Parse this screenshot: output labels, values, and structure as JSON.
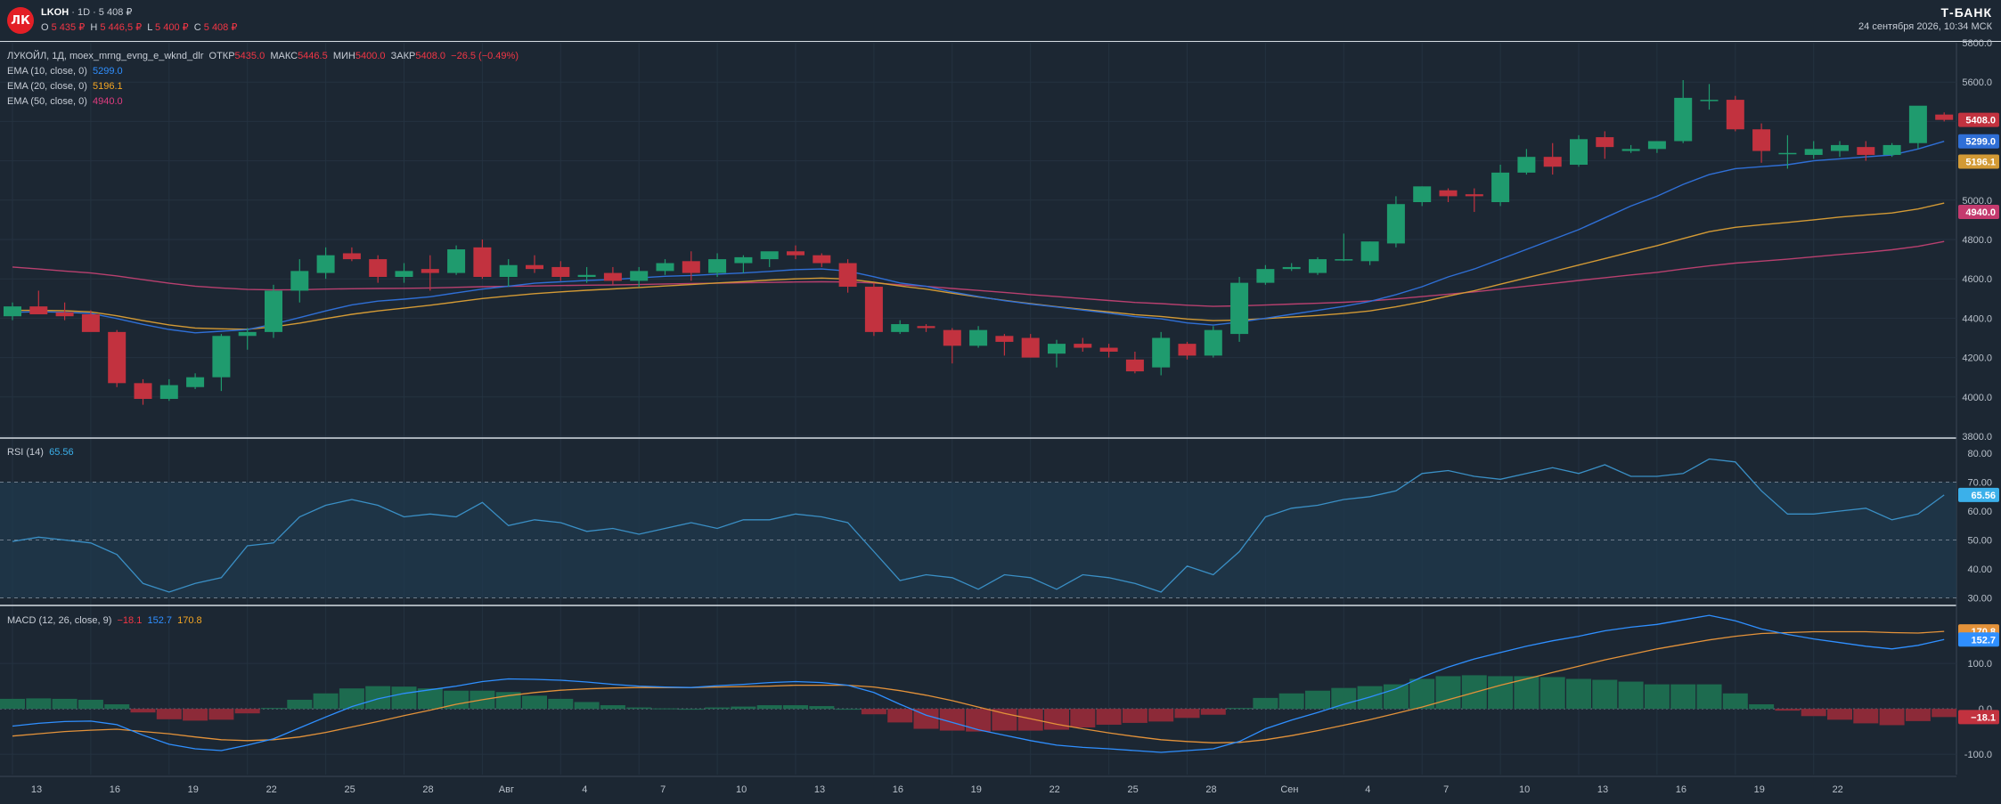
{
  "header": {
    "logo_text": "ЛК",
    "ticker": "LKOH",
    "timeframe": "· 1D ·",
    "last_price": "5 408 ₽",
    "ohlc": [
      {
        "label": "O",
        "value": "5 435 ₽"
      },
      {
        "label": "H",
        "value": "5 446,5 ₽"
      },
      {
        "label": "L",
        "value": "5 400 ₽"
      },
      {
        "label": "C",
        "value": "5 408 ₽"
      }
    ],
    "brand": "Т-БАНК",
    "datetime": "24 сентября 2026, 10:34 МСК"
  },
  "price_legend": {
    "title": "ЛУКОЙЛ, 1Д, moex_mrng_evng_e_wknd_dlr",
    "open_label": "ОТКР",
    "open": "5435.0",
    "high_label": "МАКС",
    "high": "5446.5",
    "low_label": "МИН",
    "low": "5400.0",
    "close_label": "ЗАКР",
    "close": "5408.0",
    "change": "−26.5 (−0.49%)",
    "ema10_label": "EMA (10, close, 0)",
    "ema10": "5299.0",
    "ema20_label": "EMA (20, close, 0)",
    "ema20": "5196.1",
    "ema50_label": "EMA (50, close, 0)",
    "ema50": "4940.0"
  },
  "rsi_legend": {
    "label": "RSI (14)",
    "value": "65.56"
  },
  "macd_legend": {
    "label": "MACD (12, 26, close, 9)",
    "hist": "−18.1",
    "macd": "152.7",
    "signal": "170.8"
  },
  "colors": {
    "up": "#1f9b6e",
    "down": "#c2323f",
    "ema10": "#2f6fd6",
    "ema20": "#d39a35",
    "ema50": "#b8406f",
    "rsi": "#3a8fc5",
    "macd": "#2f8fff",
    "signal": "#e3923a",
    "hist_up": "#1d6b4f",
    "hist_down": "#8c2a38"
  },
  "chart_data": [
    {
      "type": "candlestick",
      "x_tick_labels": [
        "13",
        "16",
        "19",
        "22",
        "25",
        "28",
        "Авг",
        "4",
        "7",
        "10",
        "13",
        "16",
        "19",
        "22",
        "25",
        "28",
        "Сен",
        "4",
        "7",
        "10",
        "13",
        "16",
        "19",
        "22"
      ],
      "y_ticks": [
        3800,
        4000,
        4200,
        4400,
        4600,
        4800,
        5000,
        5200,
        5400,
        5600,
        5800
      ],
      "ylim": [
        3800,
        5800
      ],
      "candles": [
        [
          4410,
          4480,
          4390,
          4460
        ],
        [
          4460,
          4540,
          4430,
          4420
        ],
        [
          4430,
          4480,
          4390,
          4410
        ],
        [
          4420,
          4440,
          4340,
          4330
        ],
        [
          4330,
          4340,
          4050,
          4070
        ],
        [
          4070,
          4090,
          3960,
          3990
        ],
        [
          3990,
          4090,
          3980,
          4060
        ],
        [
          4050,
          4120,
          4040,
          4100
        ],
        [
          4100,
          4320,
          4030,
          4310
        ],
        [
          4310,
          4350,
          4240,
          4330
        ],
        [
          4330,
          4570,
          4300,
          4540
        ],
        [
          4540,
          4700,
          4480,
          4640
        ],
        [
          4630,
          4760,
          4600,
          4720
        ],
        [
          4730,
          4760,
          4690,
          4700
        ],
        [
          4700,
          4720,
          4580,
          4610
        ],
        [
          4610,
          4680,
          4580,
          4640
        ],
        [
          4650,
          4720,
          4540,
          4630
        ],
        [
          4630,
          4770,
          4620,
          4750
        ],
        [
          4760,
          4800,
          4600,
          4610
        ],
        [
          4610,
          4700,
          4560,
          4670
        ],
        [
          4670,
          4720,
          4630,
          4650
        ],
        [
          4660,
          4690,
          4590,
          4610
        ],
        [
          4610,
          4660,
          4580,
          4620
        ],
        [
          4630,
          4660,
          4570,
          4590
        ],
        [
          4590,
          4660,
          4560,
          4640
        ],
        [
          4640,
          4700,
          4620,
          4680
        ],
        [
          4690,
          4740,
          4590,
          4630
        ],
        [
          4630,
          4730,
          4610,
          4700
        ],
        [
          4680,
          4720,
          4630,
          4710
        ],
        [
          4700,
          4730,
          4660,
          4740
        ],
        [
          4740,
          4770,
          4700,
          4720
        ],
        [
          4720,
          4730,
          4660,
          4680
        ],
        [
          4680,
          4700,
          4530,
          4560
        ],
        [
          4560,
          4580,
          4310,
          4330
        ],
        [
          4330,
          4390,
          4320,
          4370
        ],
        [
          4360,
          4370,
          4330,
          4350
        ],
        [
          4340,
          4350,
          4170,
          4260
        ],
        [
          4260,
          4360,
          4250,
          4340
        ],
        [
          4310,
          4320,
          4210,
          4280
        ],
        [
          4300,
          4320,
          4200,
          4200
        ],
        [
          4220,
          4290,
          4150,
          4270
        ],
        [
          4270,
          4300,
          4230,
          4250
        ],
        [
          4250,
          4270,
          4200,
          4230
        ],
        [
          4190,
          4230,
          4120,
          4130
        ],
        [
          4150,
          4330,
          4110,
          4300
        ],
        [
          4270,
          4280,
          4190,
          4210
        ],
        [
          4210,
          4360,
          4200,
          4340
        ],
        [
          4320,
          4610,
          4280,
          4580
        ],
        [
          4580,
          4670,
          4570,
          4650
        ],
        [
          4650,
          4680,
          4640,
          4660
        ],
        [
          4630,
          4710,
          4620,
          4700
        ],
        [
          4700,
          4830,
          4690,
          4700
        ],
        [
          4690,
          4790,
          4670,
          4790
        ],
        [
          4780,
          5020,
          4760,
          4980
        ],
        [
          4990,
          5070,
          4970,
          5070
        ],
        [
          5050,
          5060,
          4990,
          5020
        ],
        [
          5030,
          5060,
          4940,
          5020
        ],
        [
          4990,
          5180,
          4970,
          5140
        ],
        [
          5140,
          5260,
          5130,
          5220
        ],
        [
          5220,
          5290,
          5130,
          5170
        ],
        [
          5180,
          5330,
          5170,
          5310
        ],
        [
          5320,
          5350,
          5210,
          5270
        ],
        [
          5250,
          5280,
          5240,
          5260
        ],
        [
          5260,
          5290,
          5240,
          5300
        ],
        [
          5300,
          5610,
          5290,
          5520
        ],
        [
          5510,
          5590,
          5460,
          5510
        ],
        [
          5510,
          5530,
          5350,
          5360
        ],
        [
          5360,
          5390,
          5190,
          5250
        ],
        [
          5240,
          5330,
          5160,
          5240
        ],
        [
          5230,
          5300,
          5210,
          5260
        ],
        [
          5250,
          5300,
          5220,
          5280
        ],
        [
          5270,
          5300,
          5200,
          5230
        ],
        [
          5230,
          5290,
          5220,
          5280
        ],
        [
          5290,
          5470,
          5260,
          5480
        ],
        [
          5435,
          5446,
          5400,
          5408
        ]
      ],
      "ema10": [
        4430,
        4433,
        4430,
        4425,
        4398,
        4369,
        4343,
        4326,
        4334,
        4342,
        4370,
        4403,
        4437,
        4468,
        4487,
        4497,
        4509,
        4529,
        4548,
        4563,
        4578,
        4585,
        4592,
        4597,
        4605,
        4613,
        4617,
        4624,
        4630,
        4638,
        4647,
        4650,
        4640,
        4611,
        4579,
        4562,
        4533,
        4510,
        4489,
        4472,
        4457,
        4441,
        4426,
        4408,
        4397,
        4376,
        4365,
        4380,
        4400,
        4420,
        4440,
        4460,
        4485,
        4520,
        4560,
        4610,
        4650,
        4700,
        4750,
        4800,
        4850,
        4910,
        4970,
        5020,
        5080,
        5130,
        5160,
        5170,
        5180,
        5200,
        5210,
        5220,
        5230,
        5260,
        5299
      ],
      "ema20": [
        4440,
        4440,
        4438,
        4432,
        4412,
        4388,
        4366,
        4350,
        4346,
        4344,
        4356,
        4375,
        4398,
        4420,
        4437,
        4451,
        4466,
        4483,
        4500,
        4513,
        4525,
        4534,
        4542,
        4549,
        4556,
        4564,
        4571,
        4579,
        4586,
        4594,
        4600,
        4604,
        4599,
        4583,
        4564,
        4548,
        4527,
        4508,
        4491,
        4474,
        4459,
        4445,
        4432,
        4418,
        4409,
        4396,
        4388,
        4391,
        4398,
        4406,
        4414,
        4424,
        4437,
        4458,
        4483,
        4512,
        4540,
        4573,
        4605,
        4637,
        4670,
        4703,
        4736,
        4769,
        4805,
        4840,
        4862,
        4875,
        4887,
        4900,
        4914,
        4925,
        4935,
        4955,
        4985
      ],
      "ema50": [
        4660,
        4650,
        4640,
        4630,
        4615,
        4596,
        4578,
        4563,
        4554,
        4546,
        4544,
        4545,
        4548,
        4550,
        4551,
        4552,
        4554,
        4557,
        4560,
        4562,
        4564,
        4566,
        4568,
        4569,
        4571,
        4574,
        4576,
        4578,
        4580,
        4582,
        4584,
        4585,
        4584,
        4579,
        4570,
        4562,
        4551,
        4541,
        4531,
        4520,
        4510,
        4500,
        4490,
        4480,
        4474,
        4466,
        4460,
        4463,
        4467,
        4472,
        4476,
        4481,
        4488,
        4498,
        4510,
        4522,
        4534,
        4548,
        4563,
        4577,
        4592,
        4606,
        4620,
        4633,
        4650,
        4666,
        4680,
        4690,
        4700,
        4712,
        4724,
        4735,
        4748,
        4765,
        4790
      ]
    },
    {
      "type": "line",
      "name": "RSI (14)",
      "y_ticks": [
        30,
        40,
        50,
        60,
        70,
        80
      ],
      "ylim": [
        28,
        84
      ],
      "bands": [
        30,
        50,
        70
      ],
      "values": [
        49.5,
        51,
        50,
        49,
        45,
        35,
        32,
        35,
        37,
        48,
        49,
        58,
        62,
        64,
        62,
        58,
        59,
        58,
        63,
        55,
        57,
        56,
        53,
        54,
        52,
        54,
        56,
        54,
        57,
        57,
        59,
        58,
        56,
        46,
        36,
        38,
        37,
        33,
        38,
        37,
        33,
        38,
        37,
        35,
        32,
        41,
        38,
        46,
        58,
        61,
        62,
        64,
        65,
        67,
        73,
        74,
        72,
        71,
        73,
        75,
        73,
        76,
        72,
        72,
        73,
        78,
        77,
        67,
        59,
        59,
        60,
        61,
        57,
        59,
        65.56
      ]
    },
    {
      "type": "macd",
      "name": "MACD (12, 26, close, 9)",
      "y_ticks": [
        -100,
        0,
        100
      ],
      "ylim": [
        -145,
        220
      ],
      "macd": [
        -38,
        -32,
        -28,
        -27,
        -35,
        -58,
        -78,
        -88,
        -92,
        -80,
        -66,
        -42,
        -18,
        5,
        22,
        34,
        42,
        50,
        60,
        66,
        65,
        63,
        59,
        54,
        50,
        48,
        47,
        51,
        54,
        58,
        60,
        58,
        52,
        36,
        10,
        -14,
        -30,
        -46,
        -58,
        -70,
        -80,
        -85,
        -88,
        -92,
        -96,
        -92,
        -88,
        -72,
        -44,
        -25,
        -8,
        10,
        26,
        44,
        70,
        92,
        110,
        124,
        138,
        150,
        160,
        172,
        180,
        186,
        196,
        206,
        194,
        176,
        164,
        154,
        146,
        138,
        132,
        140,
        152.7
      ],
      "signal": [
        -60,
        -55,
        -50,
        -47,
        -45,
        -50,
        -55,
        -62,
        -68,
        -70,
        -68,
        -62,
        -52,
        -40,
        -28,
        -15,
        -3,
        10,
        20,
        29,
        36,
        41,
        44,
        46,
        47,
        47,
        47,
        48,
        49,
        50,
        52,
        52,
        52,
        48,
        40,
        30,
        18,
        4,
        -10,
        -22,
        -34,
        -44,
        -53,
        -61,
        -68,
        -72,
        -75,
        -74,
        -68,
        -59,
        -48,
        -36,
        -24,
        -10,
        4,
        20,
        36,
        52,
        66,
        80,
        94,
        108,
        120,
        132,
        142,
        152,
        160,
        166,
        168,
        170,
        170,
        170,
        168,
        167,
        170.8
      ],
      "hist": [
        22,
        23,
        22,
        20,
        10,
        -8,
        -23,
        -26,
        -24,
        -10,
        2,
        20,
        34,
        45,
        50,
        49,
        45,
        40,
        40,
        37,
        29,
        22,
        15,
        8,
        3,
        1,
        0,
        3,
        5,
        8,
        8,
        6,
        0,
        -12,
        -30,
        -44,
        -48,
        -50,
        -48,
        -48,
        -46,
        -41,
        -35,
        -31,
        -28,
        -20,
        -13,
        2,
        24,
        34,
        40,
        46,
        50,
        54,
        66,
        72,
        74,
        72,
        72,
        70,
        66,
        64,
        60,
        54,
        54,
        54,
        34,
        10,
        -4,
        -16,
        -24,
        -32,
        -36,
        -27,
        -18.1
      ]
    }
  ]
}
